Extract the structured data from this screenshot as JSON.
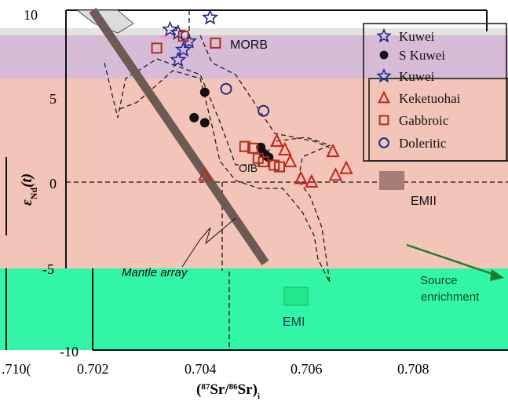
{
  "chart_data": {
    "type": "scatter",
    "xlabel_iso87": "87",
    "xlabel_sr1": "Sr/",
    "xlabel_iso86": "86",
    "xlabel_sr2": "Sr)",
    "xlabel_sub": "i",
    "ylabel_main": "ε",
    "ylabel_sub": "Nd",
    "ylabel_paren": "(t)",
    "xlim": [
      0.702,
      0.7097
    ],
    "ylim": [
      -10,
      10
    ],
    "x_ticks": [
      "0.702",
      "0.704",
      "0.706",
      "0.708"
    ],
    "y_ticks": [
      "10",
      "5",
      "0",
      "-5",
      "-10"
    ],
    "stray_tick": ".710(",
    "colors": {
      "band_purple": "#d6bcd7",
      "band_pink": "#f3c4b8",
      "band_green": "#33f5a6",
      "top_strip": "#e6e2de",
      "s_kuwei": "#111111",
      "kuwei": "#1f2a8c",
      "keketuohai": "#c8201a",
      "gabbroic": "#b52a18",
      "doleritic": "#1f2a8c",
      "mantle_array": "#6e5a55",
      "emii": "#a57d76",
      "emi": "#22e88a",
      "source_arrow": "#1f7a2c"
    },
    "series": [
      {
        "name": "S Kuwei",
        "marker": "filled-circle",
        "points": [
          [
            0.7041,
            5.3
          ],
          [
            0.7039,
            3.8
          ],
          [
            0.7041,
            3.5
          ],
          [
            0.70515,
            2.05
          ],
          [
            0.7052,
            1.7
          ],
          [
            0.70525,
            1.55
          ],
          [
            0.7053,
            1.45
          ]
        ]
      },
      {
        "name": "Kuwei",
        "marker": "star",
        "points": [
          [
            0.70345,
            9.0
          ],
          [
            0.7036,
            8.8
          ],
          [
            0.7038,
            8.3
          ],
          [
            0.7037,
            7.8
          ],
          [
            0.7036,
            7.2
          ],
          [
            0.7042,
            9.7
          ]
        ]
      },
      {
        "name": "Keketuohai",
        "marker": "triangle",
        "points": [
          [
            0.7041,
            0.4
          ],
          [
            0.70545,
            2.4
          ],
          [
            0.7056,
            1.9
          ],
          [
            0.7057,
            1.2
          ],
          [
            0.7059,
            0.2
          ],
          [
            0.7061,
            0.0
          ],
          [
            0.7065,
            1.8
          ],
          [
            0.70655,
            0.4
          ],
          [
            0.70675,
            0.8
          ]
        ]
      },
      {
        "name": "Gabbroic",
        "marker": "square",
        "points": [
          [
            0.7032,
            7.9
          ],
          [
            0.7037,
            8.6
          ],
          [
            0.7043,
            8.2
          ],
          [
            0.70485,
            2.1
          ],
          [
            0.705,
            2.0
          ],
          [
            0.7051,
            1.4
          ],
          [
            0.7052,
            1.2
          ],
          [
            0.7054,
            1.0
          ],
          [
            0.7055,
            0.9
          ]
        ]
      },
      {
        "name": "Doleritic",
        "marker": "open-circle",
        "points": [
          [
            0.7045,
            5.5
          ],
          [
            0.7052,
            4.2
          ]
        ]
      }
    ],
    "legend": {
      "placement": "top-right",
      "entries": [
        "Kuwei",
        "S Kuwei",
        "Kuwei",
        "Keketuohai",
        "Gabbroic",
        "Doleritic"
      ]
    },
    "annotations": {
      "morb": "MORB",
      "emii": "EMII",
      "emi": "EMI",
      "mantle_array": "Mantle array",
      "src_line1": "Source",
      "src_line2": "enrichment",
      "obscured": "OIB"
    },
    "grid": false
  }
}
